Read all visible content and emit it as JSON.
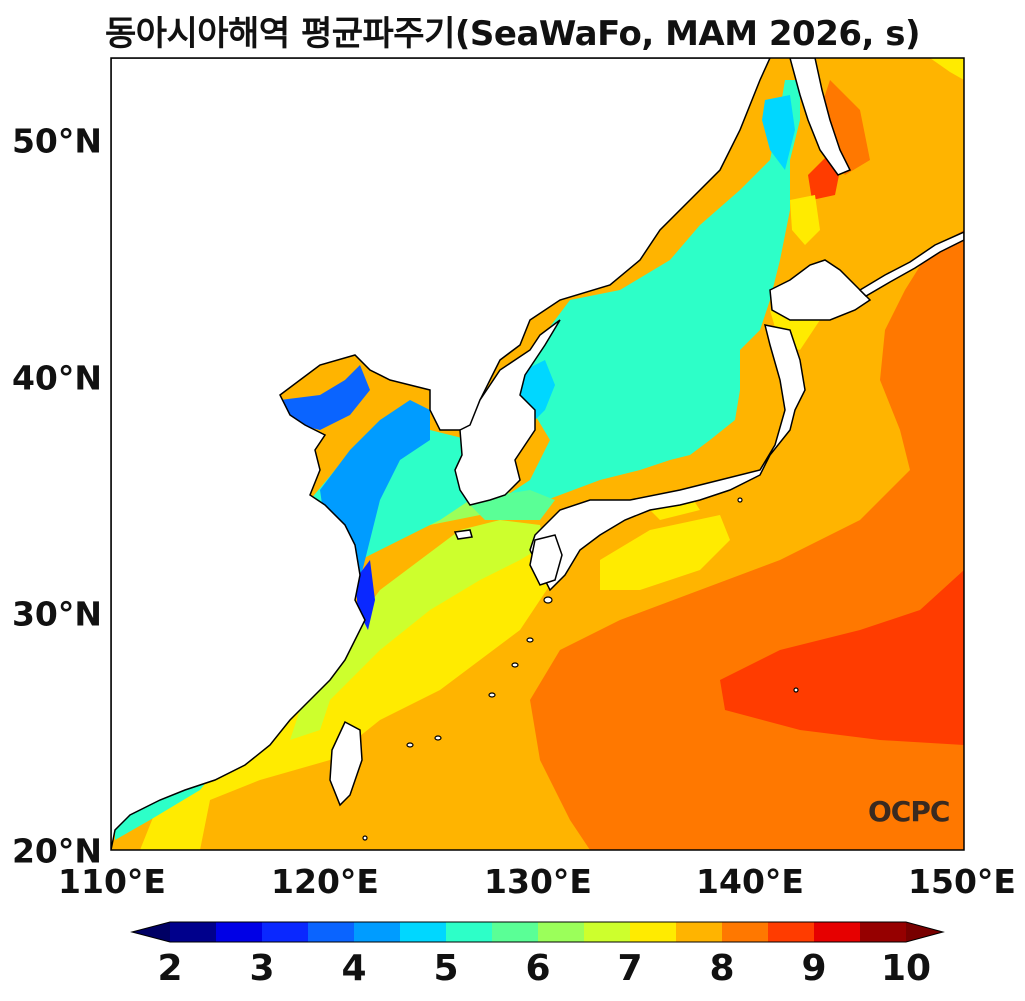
{
  "title": "동아시아해역 평균파주기(SeaWaFo, MAM 2026, s)",
  "y_ticks": [
    "50°N",
    "40°N",
    "30°N",
    "20°N"
  ],
  "x_ticks": [
    "110°E",
    "120°E",
    "130°E",
    "140°E",
    "150°E"
  ],
  "colorbar": {
    "labels": [
      "2",
      "3",
      "4",
      "5",
      "6",
      "7",
      "8",
      "9",
      "10"
    ],
    "colors": [
      "#00008c",
      "#0000e6",
      "#0a28ff",
      "#0a64ff",
      "#009cff",
      "#00d7ff",
      "#2dffc8",
      "#5aff96",
      "#9bff5a",
      "#cdff2d",
      "#ffeb00",
      "#ffb400",
      "#ff7800",
      "#ff3c00",
      "#e60000",
      "#960000"
    ],
    "under_color": "#000064",
    "over_color": "#780000"
  },
  "logo": "OCPC",
  "map": {
    "lon_range": [
      110,
      150
    ],
    "lat_range": [
      20,
      53.5
    ],
    "units": "s"
  }
}
